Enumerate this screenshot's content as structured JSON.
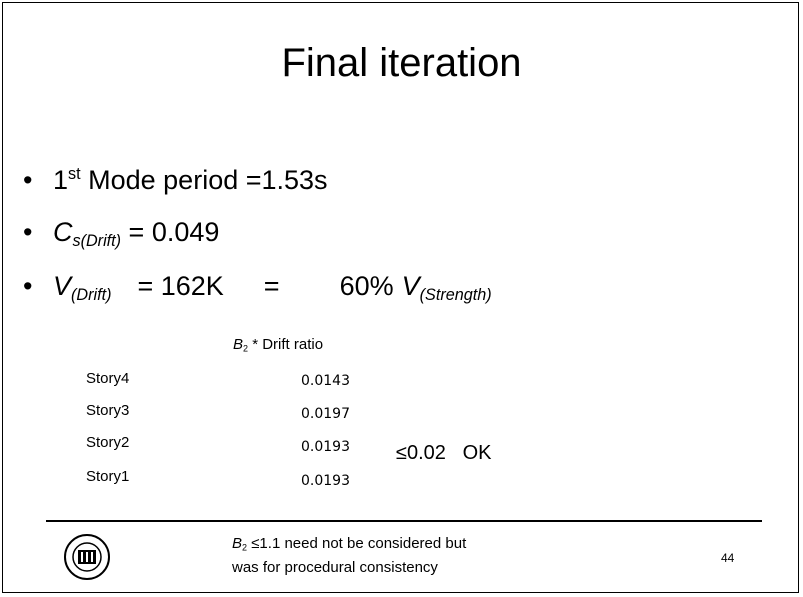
{
  "title": "Final iteration",
  "bullets": [
    {
      "parts": [
        "1",
        "st",
        " Mode period =1.53s"
      ]
    },
    {
      "parts": [
        "C",
        "s(Drift)",
        " = 0.049"
      ]
    },
    {
      "parts": [
        "V",
        "(Drift)",
        "= 162K",
        "=",
        "60%",
        "V",
        "(Strength)"
      ]
    }
  ],
  "table": {
    "header": [
      "B",
      "2",
      " * Drift ratio"
    ],
    "rows": [
      [
        "Story4",
        "0.0143"
      ],
      [
        "Story3",
        "0.0197"
      ],
      [
        "Story2",
        "0.0193"
      ],
      [
        "Story1",
        "0.0193"
      ]
    ],
    "note": "≤0.02   OK"
  },
  "footer": {
    "note_lines": [
      [
        "B",
        "2",
        " ≤1.1 need not be considered but"
      ],
      [
        "was for procedural consistency"
      ]
    ],
    "page_number": "44"
  }
}
